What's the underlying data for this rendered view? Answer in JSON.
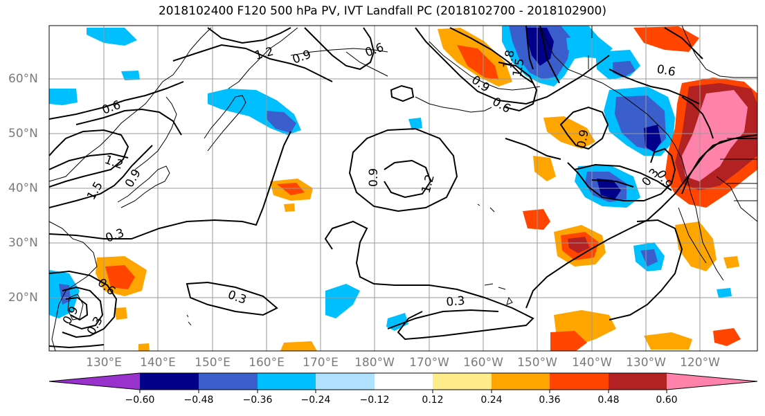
{
  "title": "2018102400 F120 500 hPa PV, IVT Landfall PC (2018102700 - 2018102900)",
  "lat_labels": [
    "60°N",
    "50°N",
    "40°N",
    "30°N",
    "20°N"
  ],
  "lon_labels": [
    "130°E",
    "140°E",
    "150°E",
    "160°E",
    "170°E",
    "180°W",
    "170°W",
    "160°W",
    "150°W",
    "140°W",
    "130°W",
    "120°W"
  ],
  "contour_labels": [
    "1.2",
    "0.9",
    "0.6",
    "0.6",
    "1.8",
    "1.5",
    "0.9",
    "0.6",
    "0.6",
    "1.2",
    "0.9",
    "1.5",
    "0.3",
    "0.9",
    "1.2",
    "0.3",
    "0.6",
    "0.9",
    "0.3",
    "0.3",
    "0.3",
    "0.9",
    "0.9"
  ],
  "colorbar": {
    "ticks": [
      "−0.60",
      "−0.48",
      "−0.36",
      "−0.24",
      "−0.12",
      "0.12",
      "0.24",
      "0.36",
      "0.48",
      "0.60"
    ],
    "colors": [
      "#9932cc",
      "#00008b",
      "#3a5fcd",
      "#00bfff",
      "#b0e2ff",
      "#ffffff",
      "#ffec8b",
      "#ffa500",
      "#ff4500",
      "#b22222",
      "#ff82ab"
    ]
  }
}
